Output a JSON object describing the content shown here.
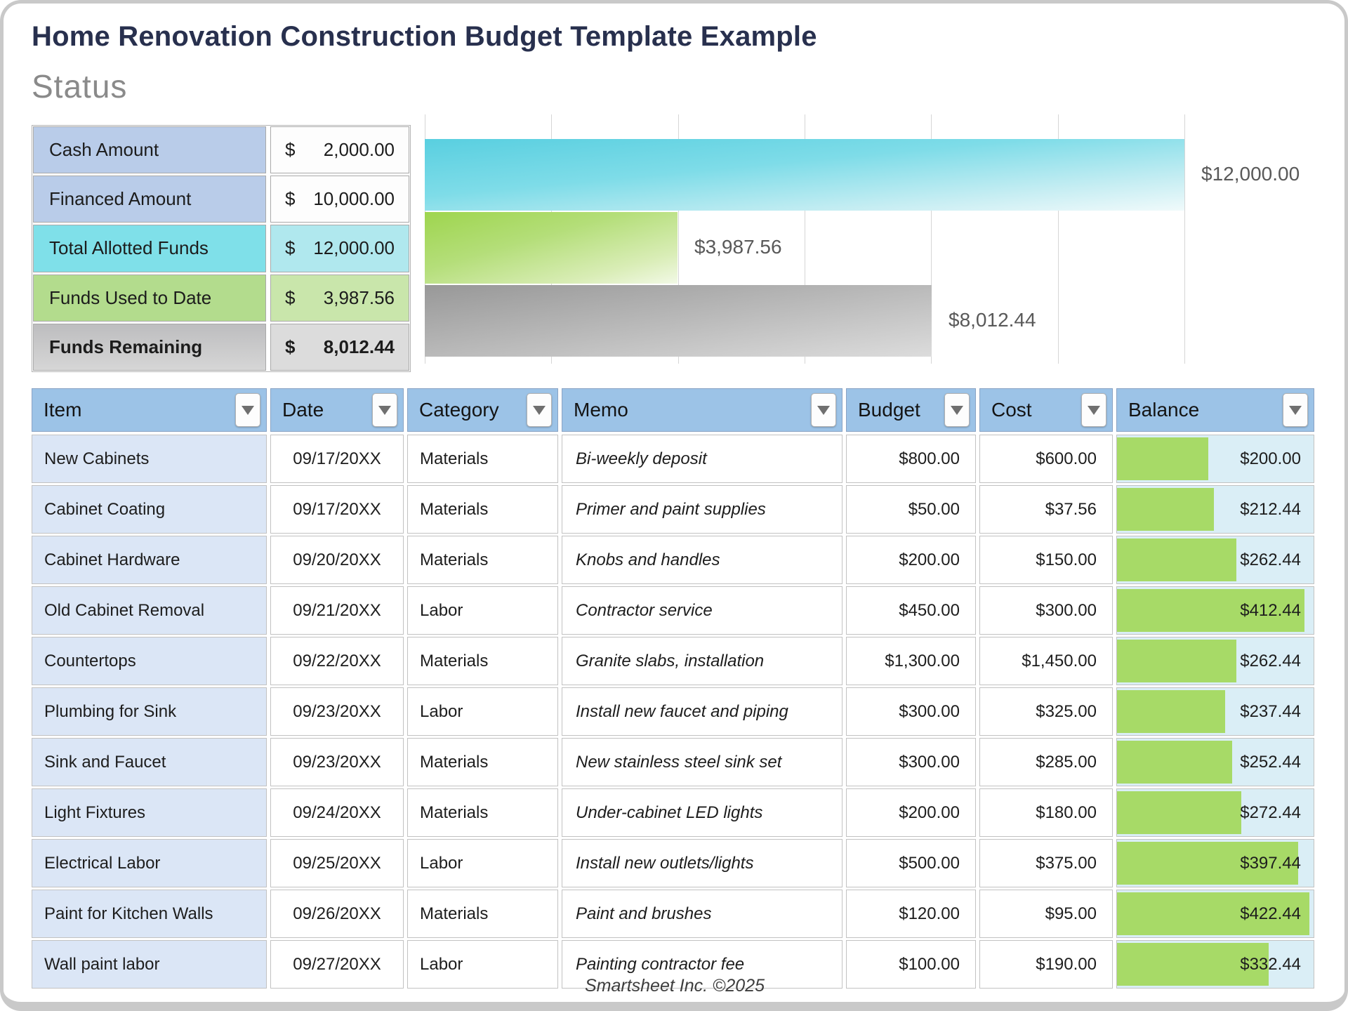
{
  "page": {
    "title": "Home Renovation Construction Budget Template Example",
    "status_heading": "Status",
    "footer": "Smartsheet Inc. ©2025"
  },
  "status_table": {
    "rows": [
      {
        "label": "Cash Amount",
        "currency": "$",
        "amount": "2,000.00",
        "style": "blue",
        "bold": false
      },
      {
        "label": "Financed Amount",
        "currency": "$",
        "amount": "10,000.00",
        "style": "blue",
        "bold": false
      },
      {
        "label": "Total Allotted Funds",
        "currency": "$",
        "amount": "12,000.00",
        "style": "cyan",
        "bold": false
      },
      {
        "label": "Funds Used to Date",
        "currency": "$",
        "amount": "3,987.56",
        "style": "green",
        "bold": false
      },
      {
        "label": "Funds Remaining",
        "currency": "$",
        "amount": "8,012.44",
        "style": "gray",
        "bold": true
      }
    ]
  },
  "chart_data": {
    "type": "bar",
    "orientation": "horizontal",
    "title": "",
    "x_max": 12000,
    "gridline_interval": 2000,
    "grid": true,
    "legend": "none",
    "bars": [
      {
        "name": "Total Allotted Funds",
        "value": 12000.0,
        "label": "$12,000.00",
        "color": "cyan"
      },
      {
        "name": "Funds Used to Date",
        "value": 3987.56,
        "label": "$3,987.56",
        "color": "green"
      },
      {
        "name": "Funds Remaining",
        "value": 8012.44,
        "label": "$8,012.44",
        "color": "gray"
      }
    ]
  },
  "budget_table": {
    "columns": [
      "Item",
      "Date",
      "Category",
      "Memo",
      "Budget",
      "Cost",
      "Balance"
    ],
    "balance_bar": {
      "max": 432,
      "color": "#a7da67"
    },
    "rows": [
      {
        "item": "New Cabinets",
        "date": "09/17/20XX",
        "category": "Materials",
        "memo": "Bi-weekly deposit",
        "budget": "$800.00",
        "cost": "$600.00",
        "balance": "$200.00",
        "balance_value": 200.0
      },
      {
        "item": "Cabinet Coating",
        "date": "09/17/20XX",
        "category": "Materials",
        "memo": "Primer and paint supplies",
        "budget": "$50.00",
        "cost": "$37.56",
        "balance": "$212.44",
        "balance_value": 212.44
      },
      {
        "item": "Cabinet Hardware",
        "date": "09/20/20XX",
        "category": "Materials",
        "memo": "Knobs and handles",
        "budget": "$200.00",
        "cost": "$150.00",
        "balance": "$262.44",
        "balance_value": 262.44
      },
      {
        "item": "Old Cabinet Removal",
        "date": "09/21/20XX",
        "category": "Labor",
        "memo": "Contractor service",
        "budget": "$450.00",
        "cost": "$300.00",
        "balance": "$412.44",
        "balance_value": 412.44
      },
      {
        "item": "Countertops",
        "date": "09/22/20XX",
        "category": "Materials",
        "memo": "Granite slabs, installation",
        "budget": "$1,300.00",
        "cost": "$1,450.00",
        "balance": "$262.44",
        "balance_value": 262.44
      },
      {
        "item": "Plumbing for Sink",
        "date": "09/23/20XX",
        "category": "Labor",
        "memo": "Install new faucet and piping",
        "budget": "$300.00",
        "cost": "$325.00",
        "balance": "$237.44",
        "balance_value": 237.44
      },
      {
        "item": "Sink and Faucet",
        "date": "09/23/20XX",
        "category": "Materials",
        "memo": "New stainless steel sink set",
        "budget": "$300.00",
        "cost": "$285.00",
        "balance": "$252.44",
        "balance_value": 252.44
      },
      {
        "item": "Light Fixtures",
        "date": "09/24/20XX",
        "category": "Materials",
        "memo": "Under-cabinet LED lights",
        "budget": "$200.00",
        "cost": "$180.00",
        "balance": "$272.44",
        "balance_value": 272.44
      },
      {
        "item": "Electrical Labor",
        "date": "09/25/20XX",
        "category": "Labor",
        "memo": "Install new outlets/lights",
        "budget": "$500.00",
        "cost": "$375.00",
        "balance": "$397.44",
        "balance_value": 397.44
      },
      {
        "item": "Paint for Kitchen Walls",
        "date": "09/26/20XX",
        "category": "Materials",
        "memo": "Paint and brushes",
        "budget": "$120.00",
        "cost": "$95.00",
        "balance": "$422.44",
        "balance_value": 422.44
      },
      {
        "item": "Wall paint labor",
        "date": "09/27/20XX",
        "category": "Labor",
        "memo": "Painting contractor fee",
        "budget": "$100.00",
        "cost": "$190.00",
        "balance": "$332.44",
        "balance_value": 332.44
      }
    ]
  }
}
